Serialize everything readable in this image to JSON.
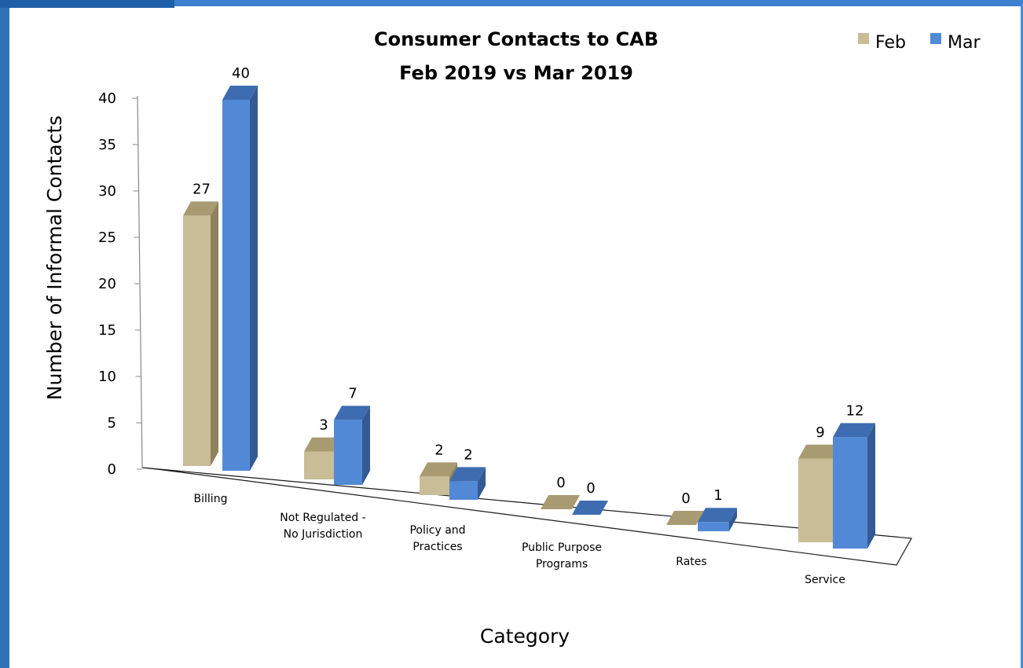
{
  "chart_data": {
    "type": "bar",
    "title": [
      "Consumer  Contacts to CAB",
      "Feb 2019 vs Mar 2019"
    ],
    "xlabel": "Category",
    "ylabel": "Number of Informal  Contacts",
    "ylim": [
      0,
      40
    ],
    "yticks": [
      0,
      5,
      10,
      15,
      20,
      25,
      30,
      35,
      40
    ],
    "categories": [
      [
        "Billing"
      ],
      [
        "Not Regulated -",
        "No Jurisdiction"
      ],
      [
        "Policy and",
        "Practices"
      ],
      [
        "Public Purpose",
        "Programs"
      ],
      [
        "Rates"
      ],
      [
        "Service"
      ]
    ],
    "series": [
      {
        "name": "Feb",
        "values": [
          27,
          3,
          2,
          0,
          0,
          9
        ]
      },
      {
        "name": "Mar",
        "values": [
          40,
          7,
          2,
          0,
          1,
          12
        ]
      }
    ],
    "legend_position": "top-right",
    "colors": {
      "Feb": {
        "front": "#c8bd96",
        "top": "#a89b72",
        "side": "#8e825e"
      },
      "Mar": {
        "front": "#5289d6",
        "top": "#3e6cb0",
        "side": "#345a93"
      }
    }
  }
}
